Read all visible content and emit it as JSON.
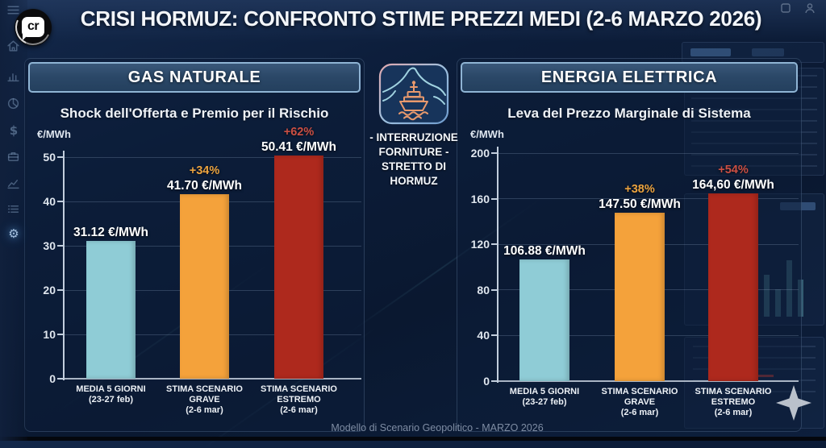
{
  "logo": "cr",
  "title": "CRISI HORMUZ: CONFRONTO STIME PREZZI MEDI (2-6 MARZO 2026)",
  "footer": "Modello di Scenario Geopolitico - MARZO 2026",
  "center": {
    "icon": "hormuz-strait-ship-icon",
    "caption_lines": [
      "- INTERRUZIONE",
      "FORNITURE -",
      "STRETTO DI",
      "HORMUZ"
    ]
  },
  "sidebar": {
    "icons": [
      "menu",
      "home",
      "bar-chart",
      "pie-chart",
      "dollar",
      "briefcase",
      "line-chart",
      "list",
      "settings"
    ],
    "active": "settings"
  },
  "header_icons": [
    "window",
    "user"
  ],
  "colors": {
    "baseline_bar": "#8fccd6",
    "grave_bar": "#f4a23b",
    "estremo_bar": "#ae291d",
    "pct_orange": "#eba33f",
    "pct_red": "#cb4f43",
    "header_border": "#8fb4d4"
  },
  "chart_data": [
    {
      "type": "bar",
      "panel_title": "GAS NATURALE",
      "title": "Shock dell'Offerta e Premio per il Rischio",
      "unit_label": "€/MWh",
      "categories": [
        [
          "MEDIA 5 GIORNI",
          "(23-27 feb)"
        ],
        [
          "STIMA SCENARIO",
          "GRAVE",
          "(2-6 mar)"
        ],
        [
          "STIMA SCENARIO",
          "ESTREMO",
          "(2-6 mar)"
        ]
      ],
      "values": [
        31.12,
        41.7,
        50.41
      ],
      "value_labels": [
        "31.12 €/MWh",
        "41.70 €/MWh",
        "50.41 €/MWh"
      ],
      "pct_labels": [
        "",
        "+34%",
        "+62%"
      ],
      "pct_colors": [
        "",
        "#eba33f",
        "#cb4f43"
      ],
      "bar_colors": [
        "#8fccd6",
        "#f4a23b",
        "#ae291d"
      ],
      "ylim": [
        0,
        50
      ],
      "yticks": [
        0,
        10,
        20,
        30,
        40,
        50
      ],
      "grid": true,
      "legend": false
    },
    {
      "type": "bar",
      "panel_title": "ENERGIA ELETTRICA",
      "title": "Leva del Prezzo Marginale di Sistema",
      "unit_label": "€/MWh",
      "categories": [
        [
          "MEDIA 5 GIORNI",
          "(23-27 feb)"
        ],
        [
          "STIMA SCENARIO",
          "GRAVE",
          "(2-6 mar)"
        ],
        [
          "STIMA SCENARIO",
          "ESTREMO",
          "(2-6 mar)"
        ]
      ],
      "values": [
        106.88,
        147.5,
        164.6
      ],
      "value_labels": [
        "106.88 €/MWh",
        "147.50 €/MWh",
        "164,60 €/MWh"
      ],
      "pct_labels": [
        "",
        "+38%",
        "+54%"
      ],
      "pct_colors": [
        "",
        "#eba33f",
        "#cb4f43"
      ],
      "bar_colors": [
        "#8fccd6",
        "#f4a23b",
        "#ae291d"
      ],
      "ylim": [
        0,
        200
      ],
      "yticks": [
        0,
        40,
        80,
        120,
        160,
        200
      ],
      "grid": true,
      "legend": false
    }
  ]
}
